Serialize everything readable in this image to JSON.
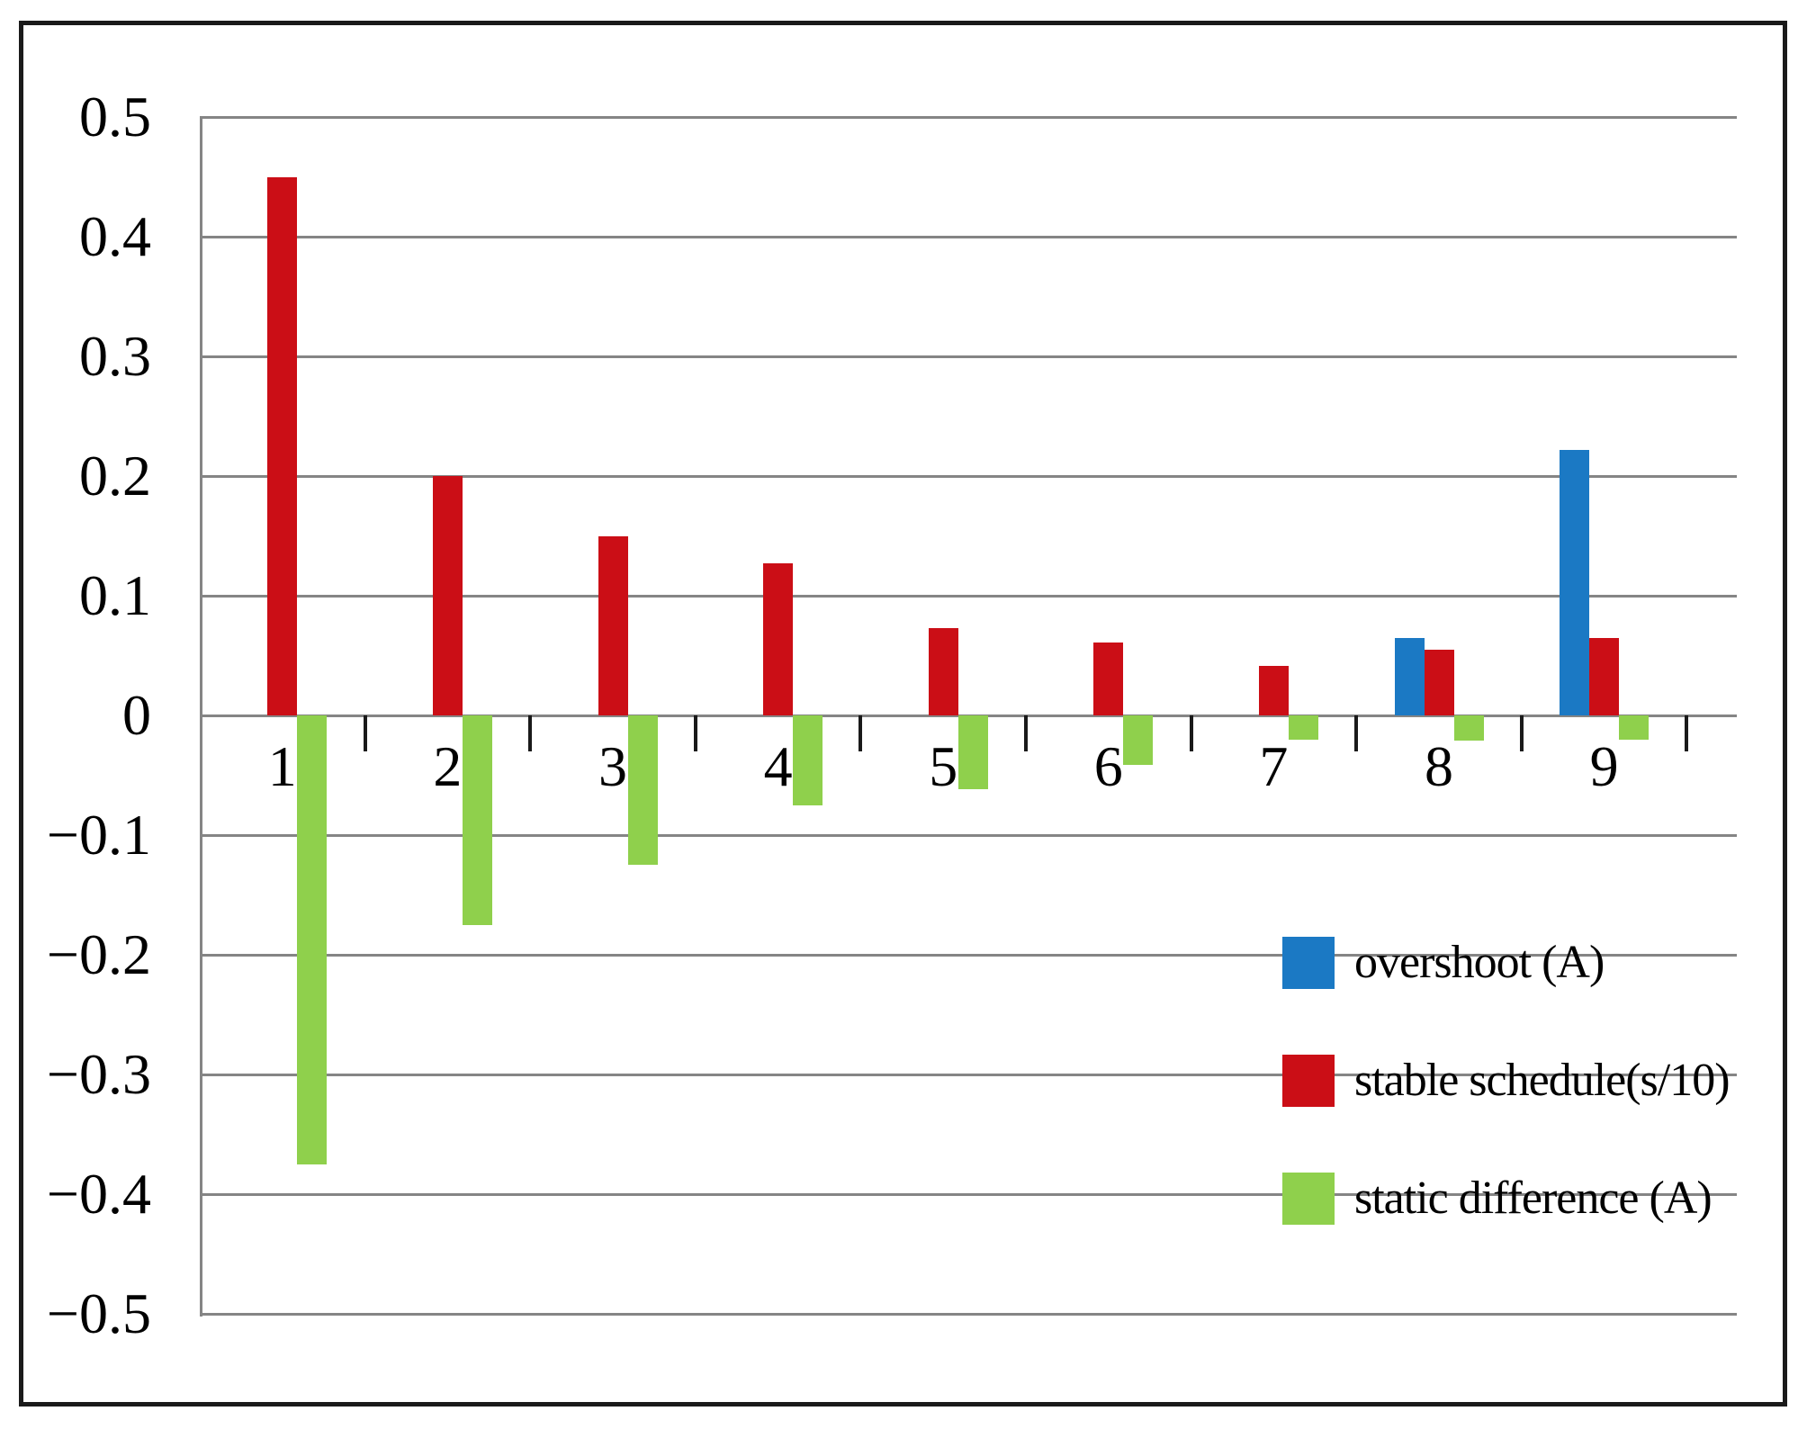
{
  "colors": {
    "overshoot_blue": "#1B79C4",
    "stable_red": "#CB0E16",
    "static_green": "#8FD04C",
    "gridline_gray": "#858585",
    "frame_black": "#1a1a1a"
  },
  "y_axis": {
    "tick_labels": [
      "0.5",
      "0.4",
      "0.3",
      "0.2",
      "0.1",
      "0",
      "−0.1",
      "−0.2",
      "−0.3",
      "−0.4",
      "−0.5"
    ]
  },
  "x_axis": {
    "tick_labels": [
      "1",
      "2",
      "3",
      "4",
      "5",
      "6",
      "7",
      "8",
      "9"
    ]
  },
  "chart_data": {
    "type": "bar",
    "categories": [
      "1",
      "2",
      "3",
      "4",
      "5",
      "6",
      "7",
      "8",
      "9"
    ],
    "series": [
      {
        "name": "overshoot（A）",
        "color": "#1B79C4",
        "values": [
          0,
          0,
          0,
          0,
          0,
          0,
          0,
          0.065,
          0.222
        ]
      },
      {
        "name": "stable schedule(s/10)",
        "color": "#CB0E16",
        "values": [
          0.45,
          0.2,
          0.15,
          0.127,
          0.073,
          0.061,
          0.041,
          0.055,
          0.065
        ]
      },
      {
        "name": "static difference（A）",
        "color": "#8FD04C",
        "values": [
          -0.375,
          -0.175,
          -0.125,
          -0.075,
          -0.062,
          -0.041,
          -0.02,
          -0.021,
          -0.02
        ]
      }
    ],
    "title": "",
    "xlabel": "",
    "ylabel": "",
    "ylim": [
      -0.5,
      0.5
    ],
    "y_ticks": [
      0.5,
      0.4,
      0.3,
      0.2,
      0.1,
      0,
      -0.1,
      -0.2,
      -0.3,
      -0.4,
      -0.5
    ],
    "grid": true,
    "legend_position": "inside lower right"
  }
}
